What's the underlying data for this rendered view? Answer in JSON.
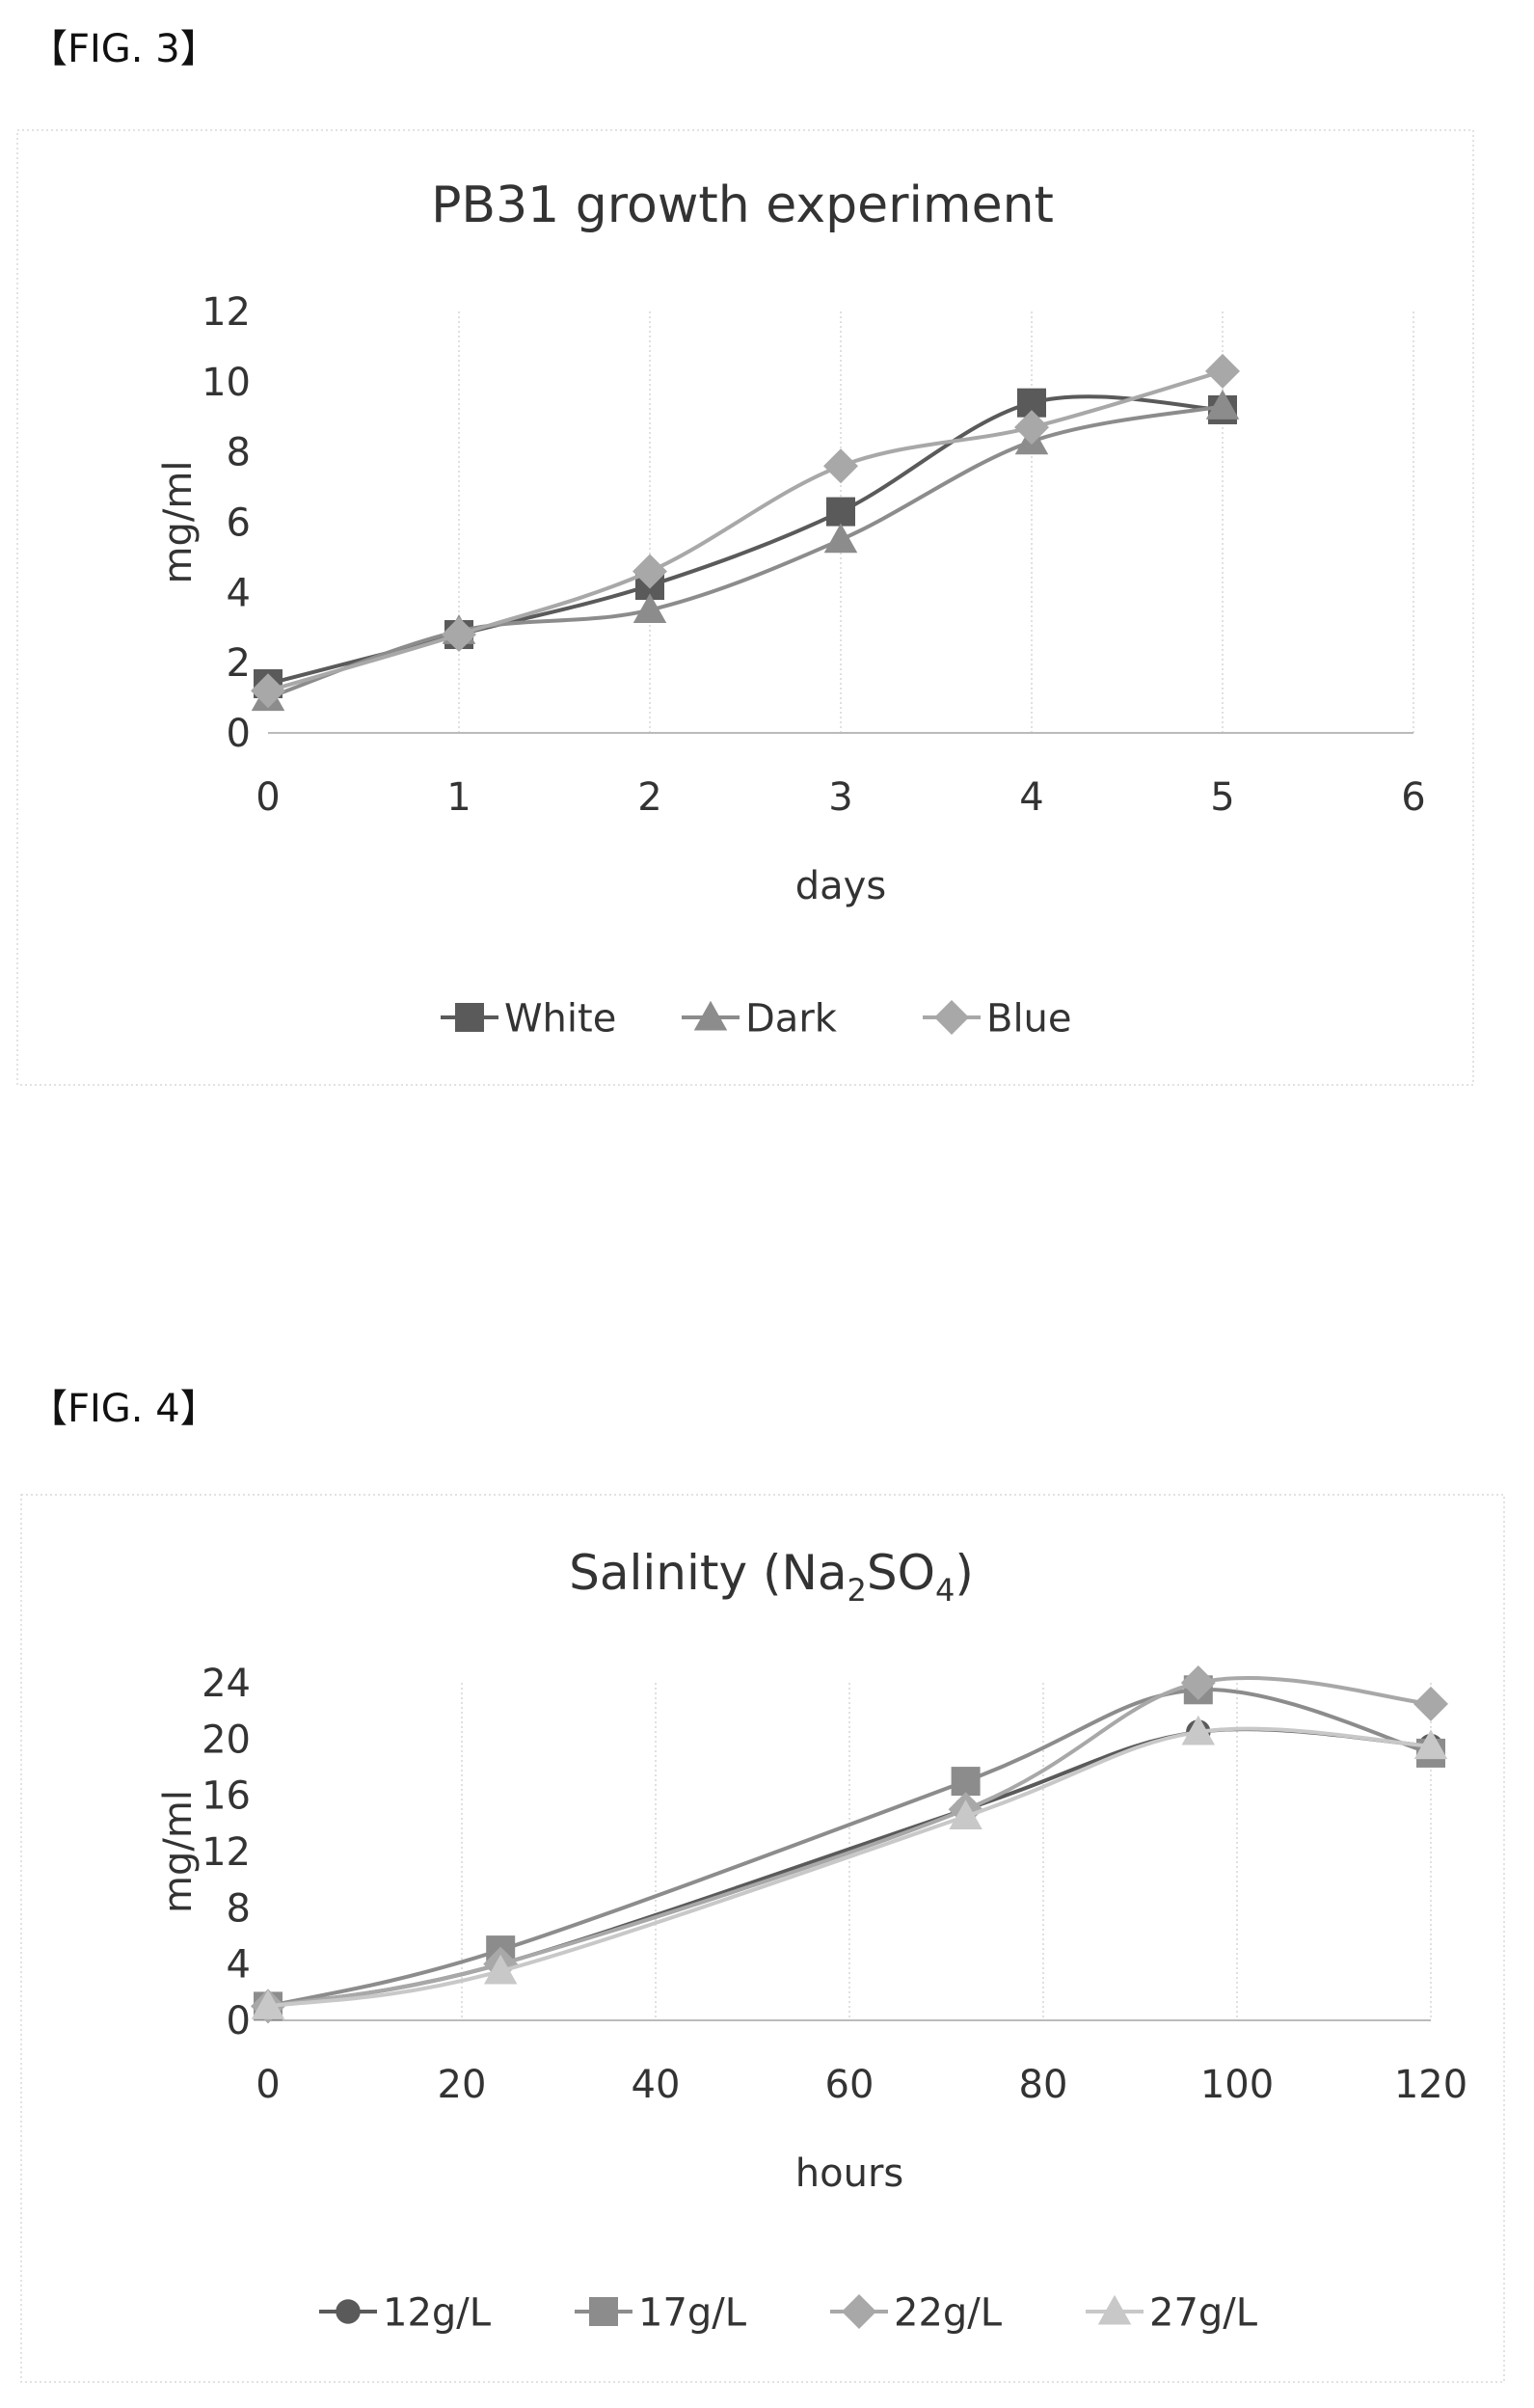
{
  "figures": [
    {
      "label": "【FIG. 3】"
    },
    {
      "label": "【FIG. 4】"
    }
  ],
  "chart_data": [
    {
      "type": "line",
      "title": "PB31 growth experiment",
      "xlabel": "days",
      "ylabel": "mg/ml",
      "xlim": [
        0,
        6
      ],
      "ylim": [
        0,
        12
      ],
      "x_ticks": [
        0,
        1,
        2,
        3,
        4,
        5,
        6
      ],
      "y_ticks": [
        0,
        2,
        4,
        6,
        8,
        10,
        12
      ],
      "legend_position": "bottom",
      "series": [
        {
          "name": "White",
          "marker": "square",
          "color": "#5a5a5a",
          "x": [
            0,
            1,
            2,
            3,
            4,
            5
          ],
          "y": [
            1.4,
            2.8,
            4.2,
            6.3,
            9.4,
            9.2
          ]
        },
        {
          "name": "Dark",
          "marker": "triangle",
          "color": "#8c8c8c",
          "x": [
            0,
            1,
            2,
            3,
            4,
            5
          ],
          "y": [
            1.0,
            2.9,
            3.5,
            5.5,
            8.3,
            9.3
          ]
        },
        {
          "name": "Blue",
          "marker": "diamond",
          "color": "#a8a8a8",
          "x": [
            0,
            1,
            2,
            3,
            4,
            5
          ],
          "y": [
            1.2,
            2.8,
            4.6,
            7.6,
            8.7,
            10.3
          ]
        }
      ]
    },
    {
      "type": "line",
      "title": "Salinity (Na",
      "title_sub1": "2",
      "title_mid": "SO",
      "title_sub2": "4",
      "title_end": ")",
      "xlabel": "hours",
      "ylabel": "mg/ml",
      "xlim": [
        0,
        120
      ],
      "ylim": [
        0,
        24
      ],
      "x_ticks": [
        0,
        20,
        40,
        60,
        80,
        100,
        120
      ],
      "y_ticks": [
        0,
        4,
        8,
        12,
        16,
        20,
        24
      ],
      "legend_position": "bottom",
      "series": [
        {
          "name": "12g/L",
          "marker": "circle",
          "color": "#5a5a5a",
          "x": [
            0,
            24,
            72,
            96,
            120
          ],
          "y": [
            1,
            4,
            15,
            20.5,
            19.5
          ]
        },
        {
          "name": "17g/L",
          "marker": "square",
          "color": "#8c8c8c",
          "x": [
            0,
            24,
            72,
            96,
            120
          ],
          "y": [
            1,
            5,
            17,
            23.5,
            19
          ]
        },
        {
          "name": "22g/L",
          "marker": "diamond",
          "color": "#a8a8a8",
          "x": [
            0,
            24,
            72,
            96,
            120
          ],
          "y": [
            1,
            4,
            15,
            24,
            22.5
          ]
        },
        {
          "name": "27g/L",
          "marker": "triangle",
          "color": "#c8c8c8",
          "x": [
            0,
            24,
            72,
            96,
            120
          ],
          "y": [
            1,
            3.5,
            14.5,
            20.5,
            19.5
          ]
        }
      ]
    }
  ]
}
